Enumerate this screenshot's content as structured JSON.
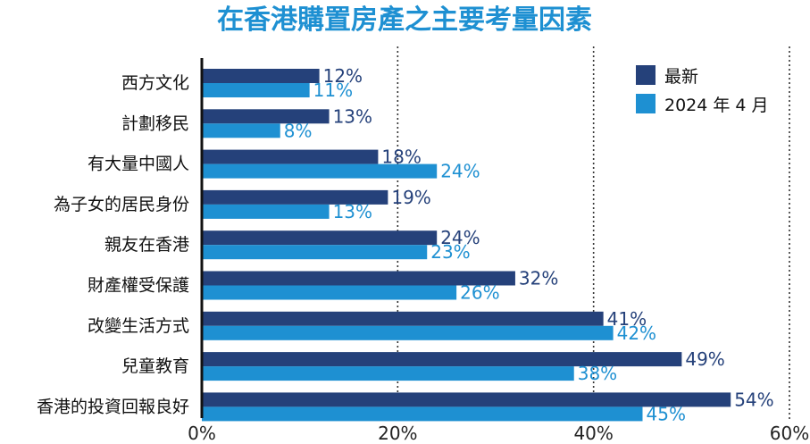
{
  "chart_data": {
    "type": "bar",
    "orientation": "horizontal",
    "title": "在香港購置房產之主要考量因素",
    "xlim": [
      0,
      60
    ],
    "x_ticks": [
      "0%",
      "20%",
      "40%",
      "60%"
    ],
    "grid": "vertical dotted",
    "legend_position": "top-right",
    "categories": [
      "西方文化",
      "計劃移民",
      "有大量中國人",
      "為子女的居民身份",
      "親友在香港",
      "財產權受保護",
      "改變生活方式",
      "兒童教育",
      "香港的投資回報良好"
    ],
    "series": [
      {
        "name": "最新",
        "color": "#25417a",
        "values": [
          12,
          13,
          18,
          19,
          24,
          32,
          41,
          49,
          54
        ],
        "labels": [
          "12%",
          "13%",
          "18%",
          "19%",
          "24%",
          "32%",
          "41%",
          "49%",
          "54%"
        ]
      },
      {
        "name": "2024 年 4 月",
        "color": "#1e90d2",
        "values": [
          11,
          8,
          24,
          13,
          23,
          26,
          42,
          38,
          45
        ],
        "labels": [
          "11%",
          "8%",
          "24%",
          "13%",
          "23%",
          "26%",
          "42%",
          "38%",
          "45%"
        ]
      }
    ]
  }
}
